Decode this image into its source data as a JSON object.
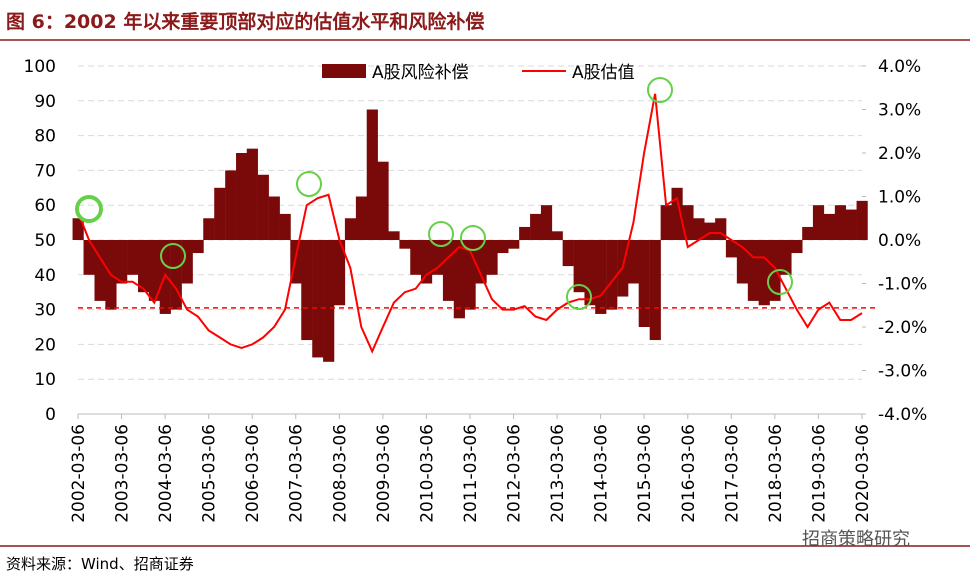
{
  "chart_data": {
    "type": "bar_line",
    "title": "图 6：2002 年以来重要顶部对应的估值水平和风险补偿",
    "source": "资料来源：Wind、招商证券",
    "watermark": "招商策略研究",
    "legend": "top",
    "x": [
      "2002-03-06",
      "2002-06-06",
      "2002-09-06",
      "2002-12-06",
      "2003-03-06",
      "2003-06-06",
      "2003-09-06",
      "2003-12-06",
      "2004-03-06",
      "2004-06-06",
      "2004-09-06",
      "2004-12-06",
      "2005-03-06",
      "2005-06-06",
      "2005-09-06",
      "2005-12-06",
      "2006-03-06",
      "2006-06-06",
      "2006-09-06",
      "2006-12-06",
      "2007-03-06",
      "2007-06-06",
      "2007-09-06",
      "2007-12-06",
      "2008-03-06",
      "2008-06-06",
      "2008-09-06",
      "2008-12-06",
      "2009-03-06",
      "2009-06-06",
      "2009-09-06",
      "2009-12-06",
      "2010-03-06",
      "2010-06-06",
      "2010-09-06",
      "2010-12-06",
      "2011-03-06",
      "2011-06-06",
      "2011-09-06",
      "2011-12-06",
      "2012-03-06",
      "2012-06-06",
      "2012-09-06",
      "2012-12-06",
      "2013-03-06",
      "2013-06-06",
      "2013-09-06",
      "2013-12-06",
      "2014-03-06",
      "2014-06-06",
      "2014-09-06",
      "2014-12-06",
      "2015-03-06",
      "2015-06-06",
      "2015-09-06",
      "2015-12-06",
      "2016-03-06",
      "2016-06-06",
      "2016-09-06",
      "2016-12-06",
      "2017-03-06",
      "2017-06-06",
      "2017-09-06",
      "2017-12-06",
      "2018-03-06",
      "2018-06-06",
      "2018-09-06",
      "2018-12-06",
      "2019-03-06",
      "2019-06-06",
      "2019-09-06",
      "2019-12-06",
      "2020-03-06"
    ],
    "xlim": [
      "2002-03-06",
      "2020-03-06"
    ],
    "xticks": [
      "2002-03-06",
      "2003-03-06",
      "2004-03-06",
      "2005-03-06",
      "2006-03-06",
      "2007-03-06",
      "2008-03-06",
      "2009-03-06",
      "2010-03-06",
      "2011-03-06",
      "2012-03-06",
      "2013-03-06",
      "2014-03-06",
      "2015-03-06",
      "2016-03-06",
      "2017-03-06",
      "2018-03-06",
      "2019-03-06",
      "2020-03-06"
    ],
    "ylim": [
      0,
      100
    ],
    "yticks": [
      0,
      10,
      20,
      30,
      40,
      50,
      60,
      70,
      80,
      90,
      100
    ],
    "y2lim": [
      -4,
      4
    ],
    "y2ticks": [
      {
        "value": -4,
        "label": "-4.0%"
      },
      {
        "value": -3,
        "label": "-3.0%"
      },
      {
        "value": -2,
        "label": "-2.0%"
      },
      {
        "value": -1,
        "label": "-1.0%"
      },
      {
        "value": 0,
        "label": "0.0%"
      },
      {
        "value": 1,
        "label": "1.0%"
      },
      {
        "value": 2,
        "label": "2.0%"
      },
      {
        "value": 3,
        "label": "3.0%"
      },
      {
        "value": 4,
        "label": "4.0%"
      }
    ],
    "reference_line": 30.5,
    "series": [
      {
        "name": "A股风险补偿",
        "color": "#7a0a0a",
        "axis": "y2",
        "values": [
          0.5,
          -0.8,
          -1.4,
          -1.6,
          -1.0,
          -0.8,
          -1.2,
          -1.4,
          -1.7,
          -1.6,
          -1.0,
          -0.3,
          0.5,
          1.2,
          1.6,
          2.0,
          2.1,
          1.5,
          1.0,
          0.6,
          -1.0,
          -2.3,
          -2.7,
          -2.8,
          -1.5,
          0.5,
          1.0,
          3.0,
          1.8,
          0.2,
          -0.2,
          -0.8,
          -1.0,
          -0.8,
          -1.4,
          -1.8,
          -1.6,
          -1.0,
          -0.8,
          -0.3,
          -0.2,
          0.3,
          0.6,
          0.8,
          0.2,
          -0.6,
          -1.2,
          -1.5,
          -1.7,
          -1.6,
          -1.3,
          -1.0,
          -2.0,
          -2.3,
          0.8,
          1.2,
          0.8,
          0.5,
          0.4,
          0.5,
          -0.4,
          -1.0,
          -1.4,
          -1.5,
          -1.4,
          -0.8,
          -0.3,
          0.3,
          0.8,
          0.6,
          0.8,
          0.7,
          0.9
        ]
      },
      {
        "name": "A股估值",
        "color": "#ff0000",
        "values": [
          58,
          50,
          45,
          40,
          38,
          38,
          36,
          32,
          40,
          36,
          30,
          28,
          24,
          22,
          20,
          19,
          20,
          22,
          25,
          30,
          45,
          60,
          62,
          63,
          50,
          42,
          25,
          18,
          25,
          32,
          35,
          36,
          40,
          42,
          45,
          48,
          47,
          40,
          33,
          30,
          30,
          31,
          28,
          27,
          30,
          32,
          33,
          33,
          34,
          38,
          42,
          55,
          75,
          92,
          60,
          62,
          48,
          50,
          52,
          52,
          50,
          48,
          45,
          45,
          42,
          36,
          30,
          25,
          30,
          32,
          27,
          27,
          29
        ]
      }
    ]
  }
}
